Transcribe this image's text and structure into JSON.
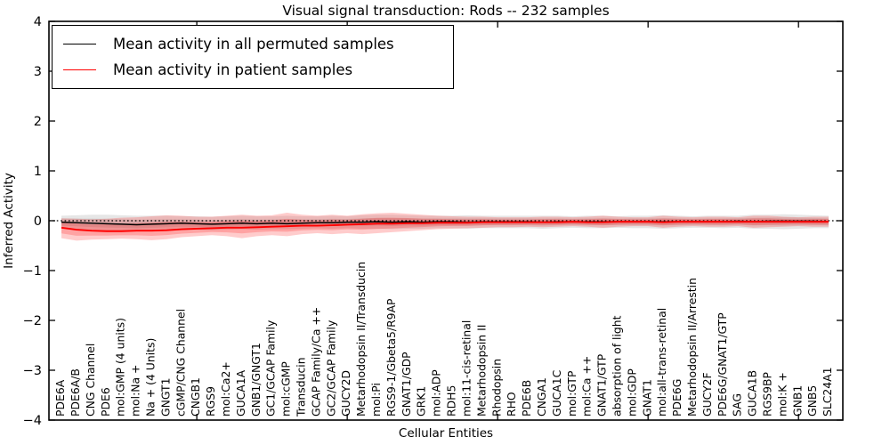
{
  "figure": {
    "title": "Visual signal transduction: Rods -- 232 samples",
    "xlabel": "Cellular Entities",
    "ylabel": "Inferred Activity"
  },
  "legend": {
    "entries": [
      {
        "label": "Mean activity in all permuted samples",
        "color": "#000000"
      },
      {
        "label": "Mean activity in patient samples",
        "color": "#ff0000"
      }
    ]
  },
  "chart_data": {
    "type": "line",
    "title": "Visual signal transduction: Rods -- 232 samples",
    "xlabel": "Cellular Entities",
    "ylabel": "Inferred Activity",
    "ylim": [
      -4,
      4
    ],
    "yticks": [
      -4,
      -3,
      -2,
      -1,
      0,
      1,
      2,
      3,
      4
    ],
    "xtick_category_indexes": [
      9,
      19,
      29,
      39,
      49
    ],
    "grid": false,
    "legend_position": "upper left",
    "zero_reference_line": {
      "y": 0,
      "style": "dotted",
      "color": "#000000"
    },
    "categories": [
      "PDE6A",
      "PDE6A/B",
      "CNG Channel",
      "PDE6",
      "mol:GMP (4 units)",
      "mol:Na +",
      "Na + (4 Units)",
      "GNGT1",
      "cGMP/CNG Channel",
      "CNGB1",
      "RGS9",
      "mol:Ca2+",
      "GUCA1A",
      "GNB1/GNGT1",
      "GC1/GCAP Family",
      "mol:cGMP",
      "Transducin",
      "GCAP Family/Ca ++",
      "GC2/GCAP Family",
      "GUCY2D",
      "Metarhodopsin II/Transducin",
      "mol:Pi",
      "RGS9-1/Gbeta5/R9AP",
      "GNAT1/GDP",
      "GRK1",
      "mol:ADP",
      "RDH5",
      "mol:11-cis-retinal",
      "Metarhodopsin II",
      "Rhodopsin",
      "RHO",
      "PDE6B",
      "CNGA1",
      "GUCA1C",
      "mol:GTP",
      "mol:Ca ++",
      "GNAT1/GTP",
      "absorption of light",
      "mol:GDP",
      "GNAT1",
      "mol:all-trans-retinal",
      "PDE6G",
      "Metarhodopsin II/Arrestin",
      "GUCY2F",
      "PDE6G/GNAT1/GTP",
      "SAG",
      "GUCA1B",
      "RGS9BP",
      "mol:K +",
      "GNB1",
      "GNB5",
      "SLC24A1"
    ],
    "series": [
      {
        "name": "Mean activity in all permuted samples",
        "color": "#000000",
        "band_color": "#808080",
        "values": [
          -0.03,
          -0.04,
          -0.05,
          -0.06,
          -0.07,
          -0.08,
          -0.07,
          -0.06,
          -0.05,
          -0.06,
          -0.07,
          -0.06,
          -0.05,
          -0.06,
          -0.05,
          -0.06,
          -0.05,
          -0.04,
          -0.04,
          -0.03,
          -0.03,
          -0.02,
          -0.03,
          -0.02,
          -0.03,
          -0.02,
          -0.02,
          -0.03,
          -0.02,
          -0.02,
          -0.02,
          -0.02,
          -0.03,
          -0.02,
          -0.02,
          -0.02,
          -0.02,
          -0.02,
          -0.02,
          -0.02,
          -0.02,
          -0.02,
          -0.02,
          -0.02,
          -0.02,
          -0.01,
          -0.02,
          -0.01,
          -0.01,
          -0.01,
          -0.01,
          -0.02
        ],
        "band_upper": [
          0.1,
          0.11,
          0.12,
          0.12,
          0.11,
          0.1,
          0.1,
          0.1,
          0.09,
          0.09,
          0.08,
          0.09,
          0.1,
          0.09,
          0.09,
          0.1,
          0.09,
          0.09,
          0.1,
          0.09,
          0.11,
          0.12,
          0.12,
          0.11,
          0.1,
          0.1,
          0.1,
          0.11,
          0.1,
          0.1,
          0.1,
          0.1,
          0.1,
          0.1,
          0.09,
          0.1,
          0.1,
          0.09,
          0.1,
          0.1,
          0.11,
          0.1,
          0.09,
          0.1,
          0.1,
          0.1,
          0.12,
          0.12,
          0.13,
          0.12,
          0.11,
          0.1
        ],
        "band_lower": [
          -0.16,
          -0.17,
          -0.19,
          -0.2,
          -0.2,
          -0.21,
          -0.2,
          -0.19,
          -0.18,
          -0.18,
          -0.19,
          -0.18,
          -0.17,
          -0.18,
          -0.17,
          -0.17,
          -0.16,
          -0.15,
          -0.16,
          -0.15,
          -0.16,
          -0.16,
          -0.17,
          -0.16,
          -0.16,
          -0.15,
          -0.15,
          -0.16,
          -0.15,
          -0.15,
          -0.15,
          -0.15,
          -0.16,
          -0.15,
          -0.14,
          -0.15,
          -0.15,
          -0.14,
          -0.15,
          -0.15,
          -0.16,
          -0.15,
          -0.14,
          -0.14,
          -0.15,
          -0.14,
          -0.16,
          -0.16,
          -0.17,
          -0.16,
          -0.15,
          -0.15
        ]
      },
      {
        "name": "Mean activity in patient samples",
        "color": "#ff0000",
        "band_color": "#ff0000",
        "values": [
          -0.14,
          -0.18,
          -0.2,
          -0.21,
          -0.21,
          -0.2,
          -0.2,
          -0.19,
          -0.17,
          -0.16,
          -0.15,
          -0.14,
          -0.14,
          -0.13,
          -0.12,
          -0.11,
          -0.1,
          -0.1,
          -0.09,
          -0.08,
          -0.07,
          -0.06,
          -0.06,
          -0.05,
          -0.05,
          -0.04,
          -0.04,
          -0.04,
          -0.03,
          -0.03,
          -0.03,
          -0.03,
          -0.03,
          -0.03,
          -0.02,
          -0.03,
          -0.03,
          -0.02,
          -0.02,
          -0.02,
          -0.03,
          -0.02,
          -0.02,
          -0.02,
          -0.02,
          -0.02,
          -0.02,
          -0.02,
          -0.02,
          -0.02,
          -0.02,
          -0.02
        ],
        "band_upper": [
          0.05,
          0.04,
          0.03,
          0.04,
          0.06,
          0.07,
          0.09,
          0.11,
          0.1,
          0.08,
          0.08,
          0.1,
          0.12,
          0.1,
          0.11,
          0.16,
          0.12,
          0.1,
          0.12,
          0.1,
          0.13,
          0.15,
          0.16,
          0.14,
          0.12,
          0.1,
          0.09,
          0.08,
          0.08,
          0.07,
          0.07,
          0.07,
          0.08,
          0.08,
          0.07,
          0.08,
          0.1,
          0.08,
          0.07,
          0.07,
          0.1,
          0.08,
          0.07,
          0.08,
          0.08,
          0.07,
          0.1,
          0.1,
          0.08,
          0.07,
          0.08,
          0.08
        ],
        "band_lower": [
          -0.35,
          -0.4,
          -0.38,
          -0.37,
          -0.36,
          -0.37,
          -0.39,
          -0.37,
          -0.33,
          -0.31,
          -0.29,
          -0.31,
          -0.35,
          -0.31,
          -0.29,
          -0.31,
          -0.27,
          -0.25,
          -0.27,
          -0.25,
          -0.27,
          -0.25,
          -0.23,
          -0.21,
          -0.19,
          -0.17,
          -0.16,
          -0.15,
          -0.14,
          -0.13,
          -0.13,
          -0.12,
          -0.13,
          -0.12,
          -0.11,
          -0.12,
          -0.14,
          -0.12,
          -0.11,
          -0.11,
          -0.14,
          -0.12,
          -0.11,
          -0.12,
          -0.12,
          -0.11,
          -0.14,
          -0.13,
          -0.12,
          -0.11,
          -0.12,
          -0.12
        ]
      }
    ]
  }
}
